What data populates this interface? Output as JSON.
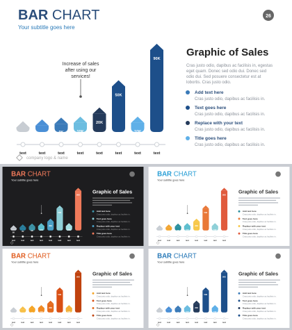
{
  "main": {
    "title_bold": "BAR",
    "title_rest": " CHART",
    "subtitle": "Your subtitle goes here",
    "page_number": "26",
    "heading": "Graphic of Sales",
    "paragraph": [
      "Cras justo odio, dapibus ac facilisis in, egestas",
      "eget quam. Donec sed odio dui. Donec sed",
      "odio dui. Sed posuere consectetur est at",
      "lobortis. Cras justo odio."
    ],
    "callout": [
      "Increase of sales",
      "after using our",
      "services!"
    ],
    "logo_text": "company logo & name",
    "list": [
      {
        "title": "Add text here",
        "text": "Cras justo odio, dapibus ac facilisis in.",
        "color": "#3a7ab8"
      },
      {
        "title": "Text goes here",
        "text": "Cras justo odio, dapibus ac facilisis in.",
        "color": "#1d4f8a"
      },
      {
        "title": "Replace with your text",
        "text": "Cras justo odio, dapibus ac facilisis in.",
        "color": "#243a5a"
      },
      {
        "title": "Title goes here",
        "text": "Cras justo odio, dapibus ac facilisis in.",
        "color": "#5fb0e8"
      }
    ]
  },
  "chart_data": {
    "type": "bar",
    "categories": [
      "text",
      "text",
      "text",
      "text",
      "text",
      "text",
      "text",
      "text"
    ],
    "values": [
      5,
      7,
      9,
      10,
      20,
      50,
      10,
      90
    ],
    "labels": [
      "5K",
      "7K",
      "9K",
      "10K",
      "20K",
      "50K",
      "10K",
      "90K"
    ],
    "colors": [
      "#c8cdd3",
      "#4a8fd6",
      "#3a7ab8",
      "#6cbde0",
      "#243a5a",
      "#1d4f8a",
      "#5fb0e8",
      "#1d4f8a"
    ]
  },
  "thumbs": [
    {
      "bg": "#1d1d1f",
      "text": "#ffffff",
      "accent": "#f07a5a",
      "colors": [
        "#c8cdd3",
        "#2a7f9e",
        "#3d94a8",
        "#5fbfcf",
        "#4aa0c7",
        "#8fd0d8",
        "#a6e0e3",
        "#f07a5a"
      ]
    },
    {
      "bg": "#ffffff",
      "text": "#333333",
      "accent": "#2a9fd6",
      "colors": [
        "#c8cdd3",
        "#f2a531",
        "#2a8f9e",
        "#5fbfcf",
        "#f7c84a",
        "#e97838",
        "#8fd0d8",
        "#e05a3c"
      ]
    },
    {
      "bg": "#ffffff",
      "text": "#333333",
      "accent": "#e05a1c",
      "colors": [
        "#c8cdd3",
        "#f7c048",
        "#f5a424",
        "#f08a24",
        "#e46a1c",
        "#d84f14",
        "#f2b13a",
        "#c0420e"
      ]
    },
    {
      "bg": "#ffffff",
      "text": "#333333",
      "accent": "#2a7ab8",
      "colors": [
        "#c8cdd3",
        "#4a8fd6",
        "#3a7ab8",
        "#6cbde0",
        "#243a5a",
        "#1d4f8a",
        "#5fb0e8",
        "#1d4f8a"
      ]
    }
  ],
  "thumb_text": {
    "title_bold": "BAR",
    "title_rest": " CHART",
    "subtitle": "Your subtitle goes here",
    "heading": "Graphic of Sales",
    "list_titles": [
      "Add text here",
      "Text goes here",
      "Replace with your text",
      "Title goes here"
    ],
    "list_text": "Cras justo odio, dapibus ac facilisis in."
  }
}
